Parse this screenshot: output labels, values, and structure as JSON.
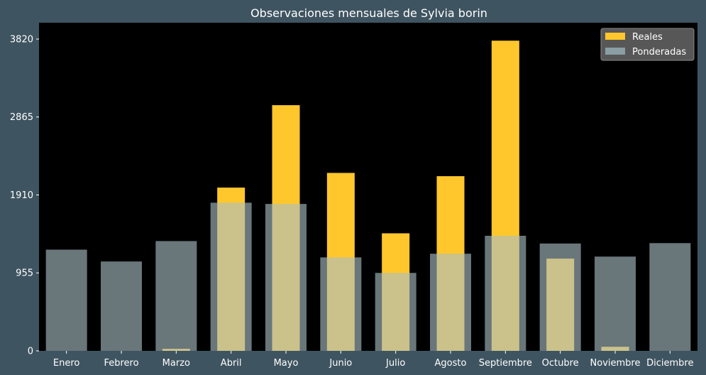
{
  "chart_data": {
    "type": "bar",
    "title": "Observaciones mensuales de Sylvia borin",
    "xlabel": "",
    "ylabel": "",
    "categories": [
      "Enero",
      "Febrero",
      "Marzo",
      "Abril",
      "Mayo",
      "Junio",
      "Julio",
      "Agosto",
      "Septiembre",
      "Octubre",
      "Noviembre",
      "Diciembre"
    ],
    "series": [
      {
        "name": "Reales",
        "values": [
          0,
          0,
          25,
          2000,
          3010,
          2180,
          1440,
          2140,
          3800,
          1130,
          50,
          0
        ]
      },
      {
        "name": "Ponderadas",
        "values": [
          1240,
          1095,
          1345,
          1815,
          1800,
          1145,
          955,
          1190,
          1410,
          1315,
          1155,
          1320
        ]
      }
    ],
    "yticks": [
      0,
      955,
      1910,
      2865,
      3820
    ],
    "ylim": [
      0,
      4020
    ],
    "grid": false,
    "legend": "top-right",
    "colors": {
      "Reales": "#ffc72c",
      "Ponderadas": "#a9bec5",
      "plot_background": "#000000",
      "figure_background": "#3f5461",
      "legend_background": "#5c5c5c"
    }
  }
}
